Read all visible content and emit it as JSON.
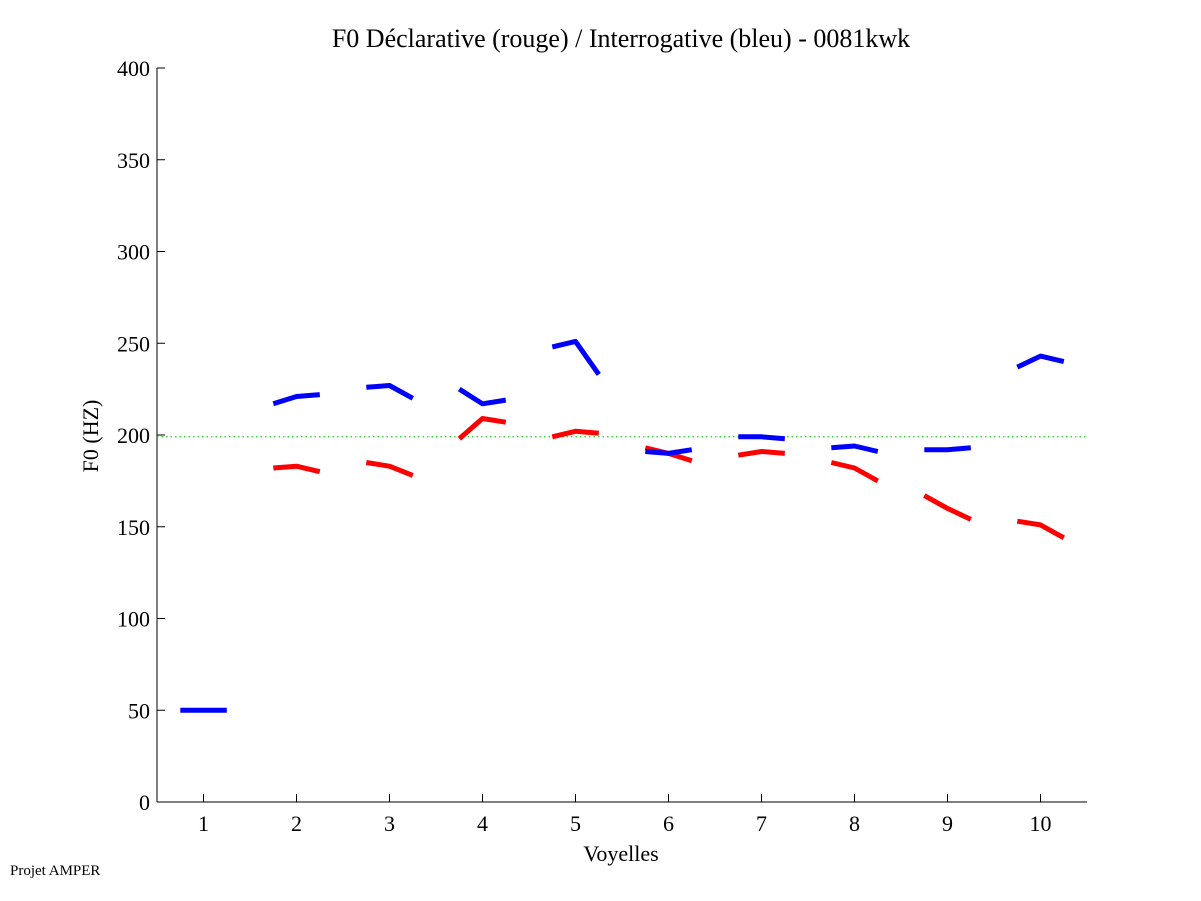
{
  "chart_data": {
    "type": "line",
    "title": "F0 Déclarative (rouge) / Interrogative (bleu) - 0081kwk",
    "xlabel": "Voyelles",
    "ylabel": "F0 (HZ)",
    "xlim": [
      0.5,
      10.5
    ],
    "ylim": [
      0,
      400
    ],
    "x_ticks": [
      "1",
      "2",
      "3",
      "4",
      "5",
      "6",
      "7",
      "8",
      "9",
      "10"
    ],
    "y_ticks": [
      "0",
      "50",
      "100",
      "150",
      "200",
      "250",
      "300",
      "350",
      "400"
    ],
    "grid": false,
    "reference_line": {
      "y": 199,
      "color": "#00cc00",
      "style": "dotted"
    },
    "series": [
      {
        "name": "Déclarative",
        "color": "#ff0000",
        "segments": [
          {
            "vowel": 2,
            "points": [
              [
                1.75,
                182
              ],
              [
                2.0,
                183
              ],
              [
                2.25,
                180
              ]
            ]
          },
          {
            "vowel": 3,
            "points": [
              [
                2.75,
                185
              ],
              [
                3.0,
                183
              ],
              [
                3.25,
                178
              ]
            ]
          },
          {
            "vowel": 4,
            "points": [
              [
                3.75,
                198
              ],
              [
                4.0,
                209
              ],
              [
                4.25,
                207
              ]
            ]
          },
          {
            "vowel": 5,
            "points": [
              [
                4.75,
                199
              ],
              [
                5.0,
                202
              ],
              [
                5.25,
                201
              ]
            ]
          },
          {
            "vowel": 6,
            "points": [
              [
                5.75,
                193
              ],
              [
                6.0,
                190
              ],
              [
                6.25,
                186
              ]
            ]
          },
          {
            "vowel": 7,
            "points": [
              [
                6.75,
                189
              ],
              [
                7.0,
                191
              ],
              [
                7.25,
                190
              ]
            ]
          },
          {
            "vowel": 8,
            "points": [
              [
                7.75,
                185
              ],
              [
                8.0,
                182
              ],
              [
                8.25,
                175
              ]
            ]
          },
          {
            "vowel": 9,
            "points": [
              [
                8.75,
                167
              ],
              [
                9.0,
                160
              ],
              [
                9.25,
                154
              ]
            ]
          },
          {
            "vowel": 10,
            "points": [
              [
                9.75,
                153
              ],
              [
                10.0,
                151
              ],
              [
                10.25,
                144
              ]
            ]
          }
        ]
      },
      {
        "name": "Interrogative",
        "color": "#0000ff",
        "segments": [
          {
            "vowel": 1,
            "points": [
              [
                0.75,
                50
              ],
              [
                1.0,
                50
              ],
              [
                1.25,
                50
              ]
            ]
          },
          {
            "vowel": 2,
            "points": [
              [
                1.75,
                217
              ],
              [
                2.0,
                221
              ],
              [
                2.25,
                222
              ]
            ]
          },
          {
            "vowel": 3,
            "points": [
              [
                2.75,
                226
              ],
              [
                3.0,
                227
              ],
              [
                3.25,
                220
              ]
            ]
          },
          {
            "vowel": 4,
            "points": [
              [
                3.75,
                225
              ],
              [
                4.0,
                217
              ],
              [
                4.25,
                219
              ]
            ]
          },
          {
            "vowel": 5,
            "points": [
              [
                4.75,
                248
              ],
              [
                5.0,
                251
              ],
              [
                5.25,
                233
              ]
            ]
          },
          {
            "vowel": 6,
            "points": [
              [
                5.75,
                191
              ],
              [
                6.0,
                190
              ],
              [
                6.25,
                192
              ]
            ]
          },
          {
            "vowel": 7,
            "points": [
              [
                6.75,
                199
              ],
              [
                7.0,
                199
              ],
              [
                7.25,
                198
              ]
            ]
          },
          {
            "vowel": 8,
            "points": [
              [
                7.75,
                193
              ],
              [
                8.0,
                194
              ],
              [
                8.25,
                191
              ]
            ]
          },
          {
            "vowel": 9,
            "points": [
              [
                8.75,
                192
              ],
              [
                9.0,
                192
              ],
              [
                9.25,
                193
              ]
            ]
          },
          {
            "vowel": 10,
            "points": [
              [
                9.75,
                237
              ],
              [
                10.0,
                243
              ],
              [
                10.25,
                240
              ]
            ]
          }
        ]
      }
    ]
  },
  "footer": {
    "text": "Projet AMPER"
  }
}
